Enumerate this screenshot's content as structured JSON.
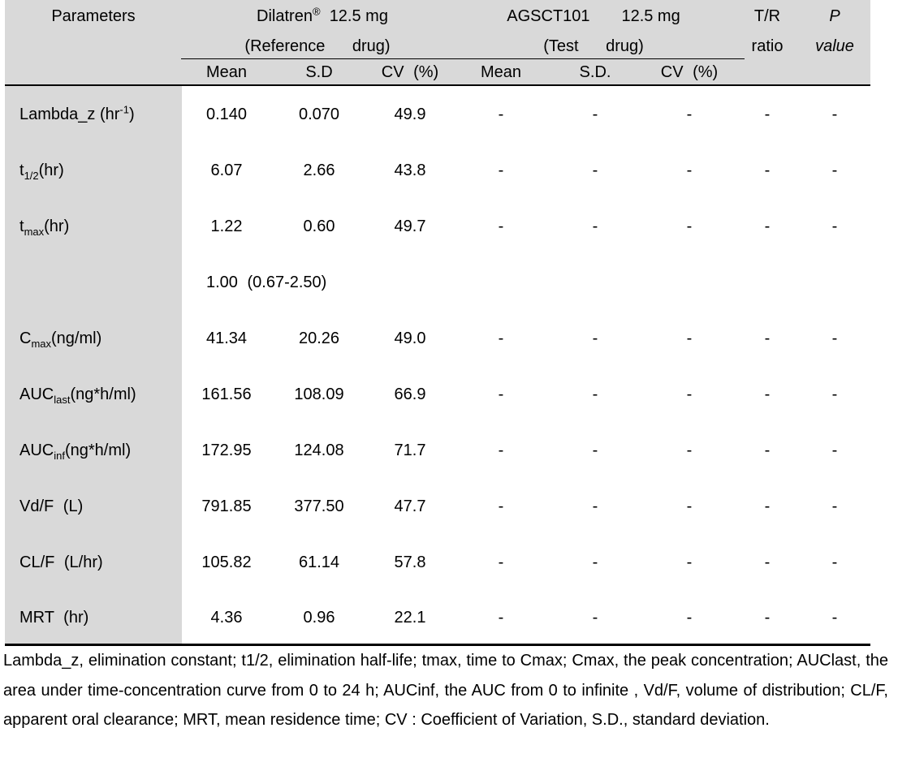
{
  "header": {
    "parameters": "Parameters",
    "reference_name": "Dilatren",
    "reference_reg": "®",
    "reference_dose": "12.5 mg",
    "reference_sub": "(Reference drug)",
    "test_name": "AGSCT101",
    "test_dose": "12.5 mg",
    "test_sub": "(Test drug)",
    "tr_line1": "T/R",
    "tr_line2": "ratio",
    "p_line1": "P",
    "p_line2": "value",
    "col_labels": [
      "Mean",
      "S.D",
      "CV (%)",
      "Mean",
      "S.D.",
      "CV (%)"
    ]
  },
  "rows": [
    {
      "param_main": "Lambda_z (hr",
      "param_sup": "-1",
      "param_tail": ")",
      "ref": [
        "0.140",
        "0.070",
        "49.9"
      ],
      "test": [
        "-",
        "-",
        "-"
      ],
      "tr": "-",
      "p": "-"
    },
    {
      "param_main": "t",
      "param_sub": "1/2",
      "param_tail": "(hr)",
      "ref": [
        "6.07",
        "2.66",
        "43.8"
      ],
      "test": [
        "-",
        "-",
        "-"
      ],
      "tr": "-",
      "p": "-"
    },
    {
      "param_main": "t",
      "param_sub": "max",
      "param_tail": "(hr)",
      "ref": [
        "1.22",
        "0.60",
        "49.7"
      ],
      "test": [
        "-",
        "-",
        "-"
      ],
      "tr": "-",
      "p": "-"
    },
    {
      "median": "1.00 (0.67-2.50)"
    },
    {
      "param_main": "C",
      "param_sub": "max",
      "param_tail": "(ng/ml)",
      "ref": [
        "41.34",
        "20.26",
        "49.0"
      ],
      "test": [
        "-",
        "-",
        "-"
      ],
      "tr": "-",
      "p": "-"
    },
    {
      "param_main": "AUC",
      "param_sub": "last",
      "param_tail": "(ng*h/ml)",
      "ref": [
        "161.56",
        "108.09",
        "66.9"
      ],
      "test": [
        "-",
        "-",
        "-"
      ],
      "tr": "-",
      "p": "-"
    },
    {
      "param_main": "AUC",
      "param_sub": "inf",
      "param_tail": "(ng*h/ml)",
      "ref": [
        "172.95",
        "124.08",
        "71.7"
      ],
      "test": [
        "-",
        "-",
        "-"
      ],
      "tr": "-",
      "p": "-"
    },
    {
      "param_main": "Vd/F (L)",
      "ref": [
        "791.85",
        "377.50",
        "47.7"
      ],
      "test": [
        "-",
        "-",
        "-"
      ],
      "tr": "-",
      "p": "-"
    },
    {
      "param_main": "CL/F (L/hr)",
      "ref": [
        "105.82",
        "61.14",
        "57.8"
      ],
      "test": [
        "-",
        "-",
        "-"
      ],
      "tr": "-",
      "p": "-"
    },
    {
      "param_main": "MRT (hr)",
      "ref": [
        "4.36",
        "0.96",
        "22.1"
      ],
      "test": [
        "-",
        "-",
        "-"
      ],
      "tr": "-",
      "p": "-"
    }
  ],
  "footnote": "Lambda_z, elimination constant; t1/2, elimination half-life; tmax, time to Cmax; Cmax, the peak concentration; AUClast, the area under time-concentration curve from 0 to 24 h; AUCinf, the AUC from 0 to infinite , Vd/F, volume of distribution; CL/F, apparent oral clearance; MRT, mean residence time; CV : Coefficient of Variation, S.D., standard deviation."
}
